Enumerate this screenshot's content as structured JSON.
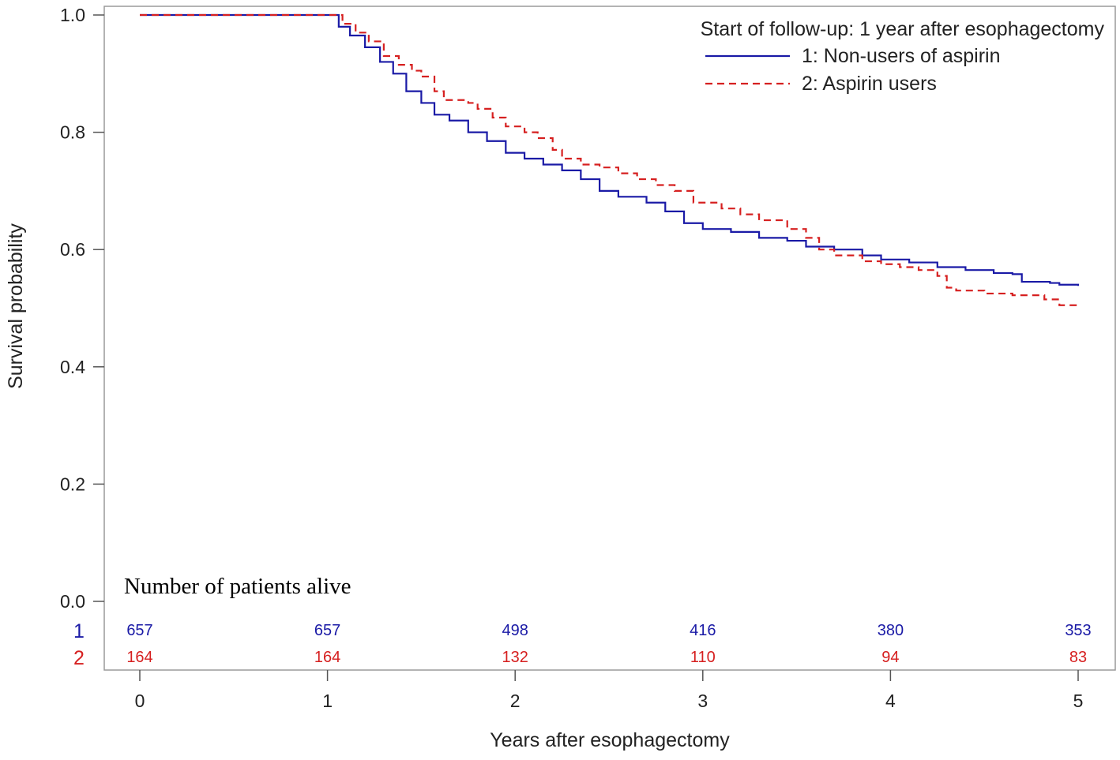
{
  "chart_data": {
    "type": "line",
    "title": "",
    "xlabel": "Years after esophagectomy",
    "ylabel": "Survival probability",
    "xlim": [
      0,
      5
    ],
    "ylim": [
      0,
      1
    ],
    "x_ticks": [
      0,
      1,
      2,
      3,
      4,
      5
    ],
    "x_tick_labels": [
      "0",
      "1",
      "2",
      "3",
      "4",
      "5"
    ],
    "y_ticks": [
      0.0,
      0.2,
      0.4,
      0.6,
      0.8,
      1.0
    ],
    "y_tick_labels": [
      "0.0",
      "0.2",
      "0.4",
      "0.6",
      "0.8",
      "1.0"
    ],
    "grid": false,
    "legend": {
      "placement": "top-right",
      "title": "Start of follow-up: 1 year after esophagectomy"
    },
    "series": [
      {
        "name": "1: Non-users of aspirin",
        "color": "#1a1aa6",
        "style": "solid",
        "points": [
          [
            0,
            1.0
          ],
          [
            1.0,
            1.0
          ],
          [
            1.06,
            0.98
          ],
          [
            1.12,
            0.965
          ],
          [
            1.2,
            0.945
          ],
          [
            1.28,
            0.92
          ],
          [
            1.35,
            0.9
          ],
          [
            1.42,
            0.87
          ],
          [
            1.5,
            0.85
          ],
          [
            1.57,
            0.83
          ],
          [
            1.65,
            0.82
          ],
          [
            1.75,
            0.8
          ],
          [
            1.85,
            0.785
          ],
          [
            1.95,
            0.765
          ],
          [
            2.05,
            0.755
          ],
          [
            2.15,
            0.745
          ],
          [
            2.25,
            0.735
          ],
          [
            2.35,
            0.72
          ],
          [
            2.45,
            0.7
          ],
          [
            2.55,
            0.69
          ],
          [
            2.7,
            0.68
          ],
          [
            2.8,
            0.665
          ],
          [
            2.9,
            0.645
          ],
          [
            3.0,
            0.635
          ],
          [
            3.15,
            0.63
          ],
          [
            3.3,
            0.62
          ],
          [
            3.45,
            0.615
          ],
          [
            3.55,
            0.605
          ],
          [
            3.7,
            0.6
          ],
          [
            3.85,
            0.59
          ],
          [
            3.95,
            0.583
          ],
          [
            4.1,
            0.578
          ],
          [
            4.25,
            0.57
          ],
          [
            4.4,
            0.565
          ],
          [
            4.55,
            0.56
          ],
          [
            4.65,
            0.558
          ],
          [
            4.7,
            0.545
          ],
          [
            4.85,
            0.543
          ],
          [
            4.9,
            0.54
          ],
          [
            5.0,
            0.538
          ]
        ]
      },
      {
        "name": "2: Aspirin users",
        "color": "#d62020",
        "style": "dashed",
        "points": [
          [
            0,
            1.0
          ],
          [
            1.0,
            1.0
          ],
          [
            1.08,
            0.985
          ],
          [
            1.15,
            0.97
          ],
          [
            1.22,
            0.955
          ],
          [
            1.3,
            0.93
          ],
          [
            1.38,
            0.915
          ],
          [
            1.45,
            0.905
          ],
          [
            1.5,
            0.895
          ],
          [
            1.57,
            0.87
          ],
          [
            1.62,
            0.855
          ],
          [
            1.75,
            0.85
          ],
          [
            1.8,
            0.84
          ],
          [
            1.88,
            0.825
          ],
          [
            1.95,
            0.81
          ],
          [
            2.05,
            0.8
          ],
          [
            2.12,
            0.79
          ],
          [
            2.2,
            0.77
          ],
          [
            2.25,
            0.755
          ],
          [
            2.35,
            0.745
          ],
          [
            2.45,
            0.74
          ],
          [
            2.55,
            0.73
          ],
          [
            2.65,
            0.72
          ],
          [
            2.75,
            0.71
          ],
          [
            2.85,
            0.7
          ],
          [
            2.95,
            0.68
          ],
          [
            3.1,
            0.67
          ],
          [
            3.2,
            0.66
          ],
          [
            3.3,
            0.65
          ],
          [
            3.38,
            0.65
          ],
          [
            3.45,
            0.635
          ],
          [
            3.55,
            0.62
          ],
          [
            3.62,
            0.6
          ],
          [
            3.7,
            0.59
          ],
          [
            3.85,
            0.58
          ],
          [
            3.95,
            0.575
          ],
          [
            4.05,
            0.57
          ],
          [
            4.15,
            0.565
          ],
          [
            4.25,
            0.555
          ],
          [
            4.3,
            0.535
          ],
          [
            4.35,
            0.53
          ],
          [
            4.5,
            0.525
          ],
          [
            4.65,
            0.522
          ],
          [
            4.82,
            0.515
          ],
          [
            4.9,
            0.505
          ],
          [
            5.0,
            0.503
          ]
        ]
      }
    ],
    "risk_table": {
      "title": "Number of patients alive",
      "groups": [
        {
          "label": "1",
          "color": "#1a1aa6",
          "counts": [
            "657",
            "657",
            "498",
            "416",
            "380",
            "353"
          ]
        },
        {
          "label": "2",
          "color": "#d62020",
          "counts": [
            "164",
            "164",
            "132",
            "110",
            "94",
            "83"
          ]
        }
      ]
    }
  }
}
